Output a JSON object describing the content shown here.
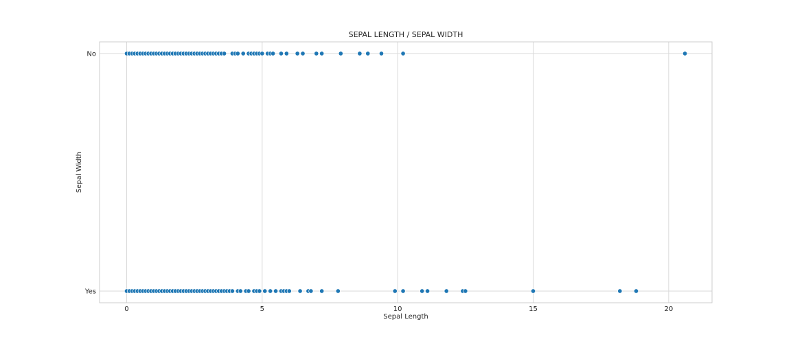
{
  "chart_data": {
    "type": "scatter",
    "title": "SEPAL LENGTH / SEPAL WIDTH",
    "xlabel": "Sepal Length",
    "ylabel": "Sepal Width",
    "xlim": [
      -1,
      21.6
    ],
    "x_ticks": [
      0,
      5,
      10,
      15,
      20
    ],
    "categories": [
      "No",
      "Yes"
    ],
    "grid": true,
    "point_color": "#1f77b4",
    "series": [
      {
        "category": "No",
        "x": [
          0.0,
          0.1,
          0.2,
          0.3,
          0.4,
          0.5,
          0.6,
          0.7,
          0.8,
          0.9,
          1.0,
          1.1,
          1.2,
          1.3,
          1.4,
          1.5,
          1.6,
          1.7,
          1.8,
          1.9,
          2.0,
          2.1,
          2.2,
          2.3,
          2.4,
          2.5,
          2.6,
          2.7,
          2.8,
          2.9,
          3.0,
          3.1,
          3.2,
          3.3,
          3.4,
          3.5,
          3.6,
          3.9,
          4.0,
          4.1,
          4.3,
          4.5,
          4.6,
          4.7,
          4.8,
          4.9,
          5.0,
          5.2,
          5.3,
          5.4,
          5.7,
          5.9,
          6.3,
          6.5,
          7.0,
          7.2,
          7.9,
          8.6,
          8.9,
          9.4,
          10.2,
          20.6
        ]
      },
      {
        "category": "Yes",
        "x": [
          0.0,
          0.1,
          0.2,
          0.3,
          0.4,
          0.5,
          0.6,
          0.7,
          0.8,
          0.9,
          1.0,
          1.1,
          1.2,
          1.3,
          1.4,
          1.5,
          1.6,
          1.7,
          1.8,
          1.9,
          2.0,
          2.1,
          2.2,
          2.3,
          2.4,
          2.5,
          2.6,
          2.7,
          2.8,
          2.9,
          3.0,
          3.1,
          3.2,
          3.3,
          3.4,
          3.5,
          3.6,
          3.7,
          3.8,
          3.9,
          4.1,
          4.2,
          4.4,
          4.5,
          4.7,
          4.8,
          4.9,
          5.1,
          5.3,
          5.5,
          5.7,
          5.8,
          5.9,
          6.0,
          6.4,
          6.7,
          6.8,
          7.2,
          7.8,
          9.9,
          10.2,
          10.9,
          11.1,
          11.8,
          12.4,
          12.5,
          15.0,
          18.2,
          18.8
        ]
      }
    ]
  }
}
